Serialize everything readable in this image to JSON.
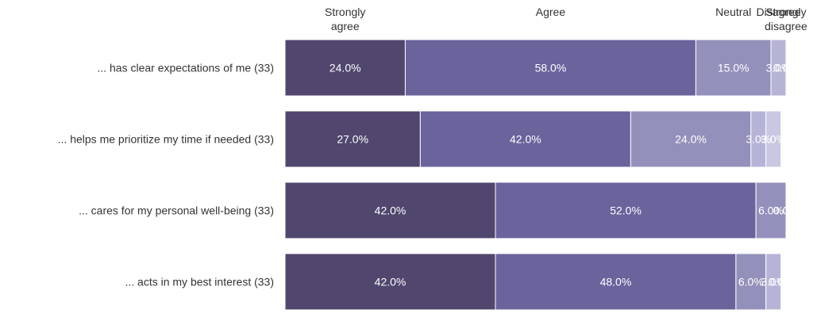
{
  "chart_data": {
    "type": "bar",
    "orientation": "horizontal",
    "stacked": true,
    "legend_placement": "top",
    "xlim": [
      0,
      100
    ],
    "grid": false,
    "categories": [
      "... has clear expectations of me (33)",
      "... helps me prioritize my time if needed (33)",
      "... cares for my personal well-being (33)",
      "... acts in my best interest (33)"
    ],
    "series": [
      {
        "name": "Strongly agree",
        "color": "#51466e",
        "values": [
          24,
          27,
          42,
          42
        ],
        "labels": [
          "24.0%",
          "27.0%",
          "42.0%",
          "42.0%"
        ]
      },
      {
        "name": "Agree",
        "color": "#6a639c",
        "values": [
          58,
          42,
          52,
          48
        ],
        "labels": [
          "58.0%",
          "42.0%",
          "52.0%",
          "48.0%"
        ]
      },
      {
        "name": "Neutral",
        "color": "#9391bb",
        "values": [
          15,
          24,
          6,
          6
        ],
        "labels": [
          "15.0%",
          "24.0%",
          "6.0%",
          "6.0%"
        ]
      },
      {
        "name": "Disagree",
        "color": "#b6b4d6",
        "values": [
          3,
          3,
          0,
          3
        ],
        "labels": [
          "3.0%",
          "3.0%",
          "0.0%",
          "3.0%"
        ]
      },
      {
        "name": "Strongly disagree",
        "color": "#c9c8e2",
        "values": [
          0,
          3,
          0,
          0
        ],
        "labels": [
          "0.0%",
          "3.0%",
          "0.0%",
          "0.0%"
        ]
      }
    ]
  }
}
